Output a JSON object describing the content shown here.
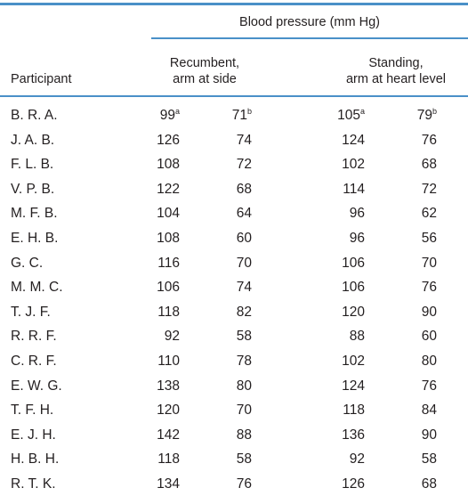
{
  "table": {
    "group_header": "Blood pressure (mm Hg)",
    "subheaders": [
      [
        "Recumbent,",
        "arm at side"
      ],
      [
        "Standing,",
        "arm at heart level"
      ]
    ],
    "row_header": "Participant",
    "rows": [
      [
        "B. R. A.",
        {
          "text": "99",
          "sup": "a"
        },
        {
          "text": "71",
          "sup": "b"
        },
        {
          "text": "105",
          "sup": "a"
        },
        {
          "text": "79",
          "sup": "b"
        }
      ],
      [
        "J. A. B.",
        "126",
        "74",
        "124",
        "76"
      ],
      [
        "F. L. B.",
        "108",
        "72",
        "102",
        "68"
      ],
      [
        "V. P. B.",
        "122",
        "68",
        "114",
        "72"
      ],
      [
        "M. F. B.",
        "104",
        "64",
        "96",
        "62"
      ],
      [
        "E. H. B.",
        "108",
        "60",
        "96",
        "56"
      ],
      [
        "G. C.",
        "116",
        "70",
        "106",
        "70"
      ],
      [
        "M. M. C.",
        "106",
        "74",
        "106",
        "76"
      ],
      [
        "T. J. F.",
        "118",
        "82",
        "120",
        "90"
      ],
      [
        "R. R. F.",
        "92",
        "58",
        "88",
        "60"
      ],
      [
        "C. R. F.",
        "110",
        "78",
        "102",
        "80"
      ],
      [
        "E. W. G.",
        "138",
        "80",
        "124",
        "76"
      ],
      [
        "T. F. H.",
        "120",
        "70",
        "118",
        "84"
      ],
      [
        "E. J. H.",
        "142",
        "88",
        "136",
        "90"
      ],
      [
        "H. B. H.",
        "118",
        "58",
        "92",
        "58"
      ],
      [
        "R. T. K.",
        "134",
        "76",
        "126",
        "68"
      ]
    ]
  }
}
